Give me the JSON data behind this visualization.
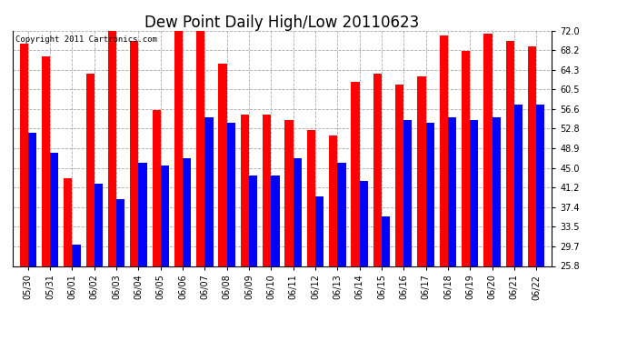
{
  "title": "Dew Point Daily High/Low 20110623",
  "copyright": "Copyright 2011 Cartronics.com",
  "dates": [
    "05/30",
    "05/31",
    "06/01",
    "06/02",
    "06/03",
    "06/04",
    "06/05",
    "06/06",
    "06/07",
    "06/08",
    "06/09",
    "06/10",
    "06/11",
    "06/12",
    "06/13",
    "06/14",
    "06/15",
    "06/16",
    "06/17",
    "06/18",
    "06/19",
    "06/20",
    "06/21",
    "06/22"
  ],
  "highs": [
    69.5,
    67.0,
    43.0,
    63.5,
    72.0,
    70.0,
    56.5,
    72.0,
    73.5,
    65.5,
    55.5,
    55.5,
    54.5,
    52.5,
    51.5,
    62.0,
    63.5,
    61.5,
    63.0,
    71.0,
    68.0,
    71.5,
    70.0,
    69.0
  ],
  "lows": [
    52.0,
    48.0,
    30.0,
    42.0,
    39.0,
    46.0,
    45.5,
    47.0,
    55.0,
    54.0,
    43.5,
    43.5,
    47.0,
    39.5,
    46.0,
    42.5,
    35.5,
    54.5,
    54.0,
    55.0,
    54.5,
    55.0,
    57.5,
    57.5
  ],
  "high_color": "#ff0000",
  "low_color": "#0000ff",
  "bg_color": "#ffffff",
  "yticks": [
    25.8,
    29.7,
    33.5,
    37.4,
    41.2,
    45.0,
    48.9,
    52.8,
    56.6,
    60.5,
    64.3,
    68.2,
    72.0
  ],
  "ymin": 25.8,
  "ymax": 72.0,
  "bar_width": 0.38,
  "grid_color": "#aaaaaa",
  "title_fontsize": 12,
  "tick_fontsize": 7,
  "copyright_fontsize": 6.5
}
